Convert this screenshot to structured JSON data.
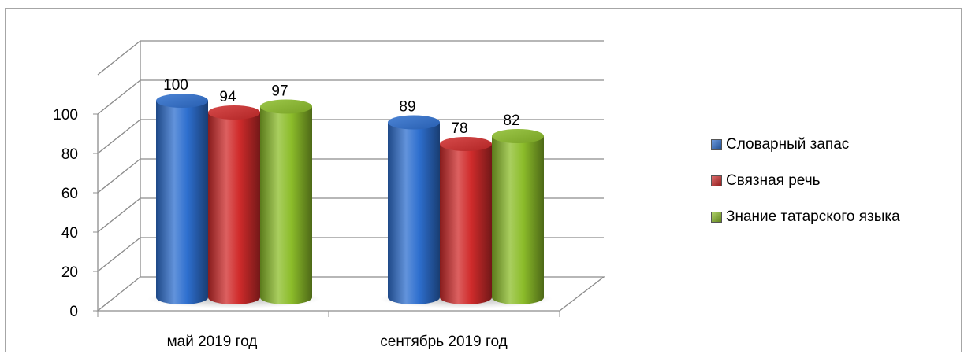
{
  "chart_data": {
    "type": "bar",
    "style": "3d-cylinder",
    "categories": [
      "май 2019 год",
      "сентябрь 2019 год"
    ],
    "series": [
      {
        "name": "Словарный запас",
        "values": [
          100,
          89
        ],
        "color": "#2e6fcf"
      },
      {
        "name": "Связная речь",
        "values": [
          94,
          78
        ],
        "color": "#d02b2b"
      },
      {
        "name": "Знание татарского языка",
        "values": [
          97,
          82
        ],
        "color": "#8cbd2a"
      }
    ],
    "y_ticks": [
      "0",
      "20",
      "40",
      "60",
      "80",
      "100"
    ],
    "ylim": [
      0,
      100
    ],
    "grid": true,
    "legend_position": "right",
    "data_labels": true
  }
}
